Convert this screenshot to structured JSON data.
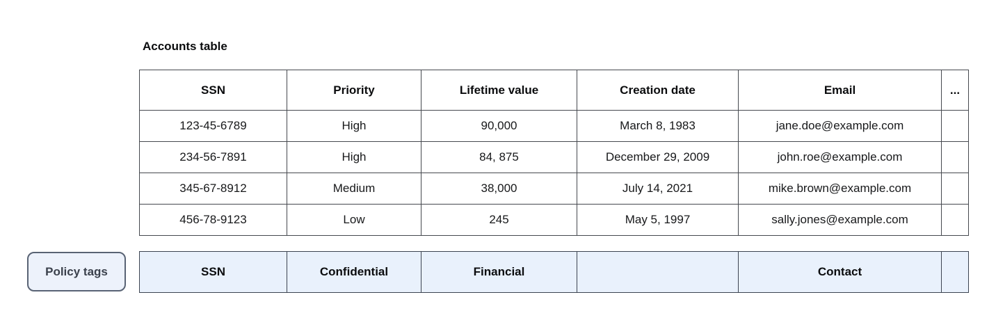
{
  "title": "Accounts table",
  "policy_button": {
    "label": "Policy tags"
  },
  "table": {
    "columns": [
      "SSN",
      "Priority",
      "Lifetime value",
      "Creation date",
      "Email",
      "..."
    ],
    "rows": [
      [
        "123-45-6789",
        "High",
        "90,000",
        "March 8, 1983",
        "jane.doe@example.com",
        ""
      ],
      [
        "234-56-7891",
        "High",
        "84, 875",
        "December 29, 2009",
        "john.roe@example.com",
        ""
      ],
      [
        "345-67-8912",
        "Medium",
        "38,000",
        "July 14, 2021",
        "mike.brown@example.com",
        ""
      ],
      [
        "456-78-9123",
        "Low",
        "245",
        "May 5, 1997",
        "sally.jones@example.com",
        ""
      ]
    ]
  },
  "policy_row": [
    "SSN",
    "Confidential",
    "Financial",
    "",
    "Contact",
    ""
  ],
  "colors": {
    "table_border": "#45484e",
    "policy_border": "#3c4350",
    "policy_cell_bg": "#e9f1fc",
    "chip_bg": "#edf2fb",
    "chip_border": "#596374",
    "chip_text": "#3b414c"
  }
}
